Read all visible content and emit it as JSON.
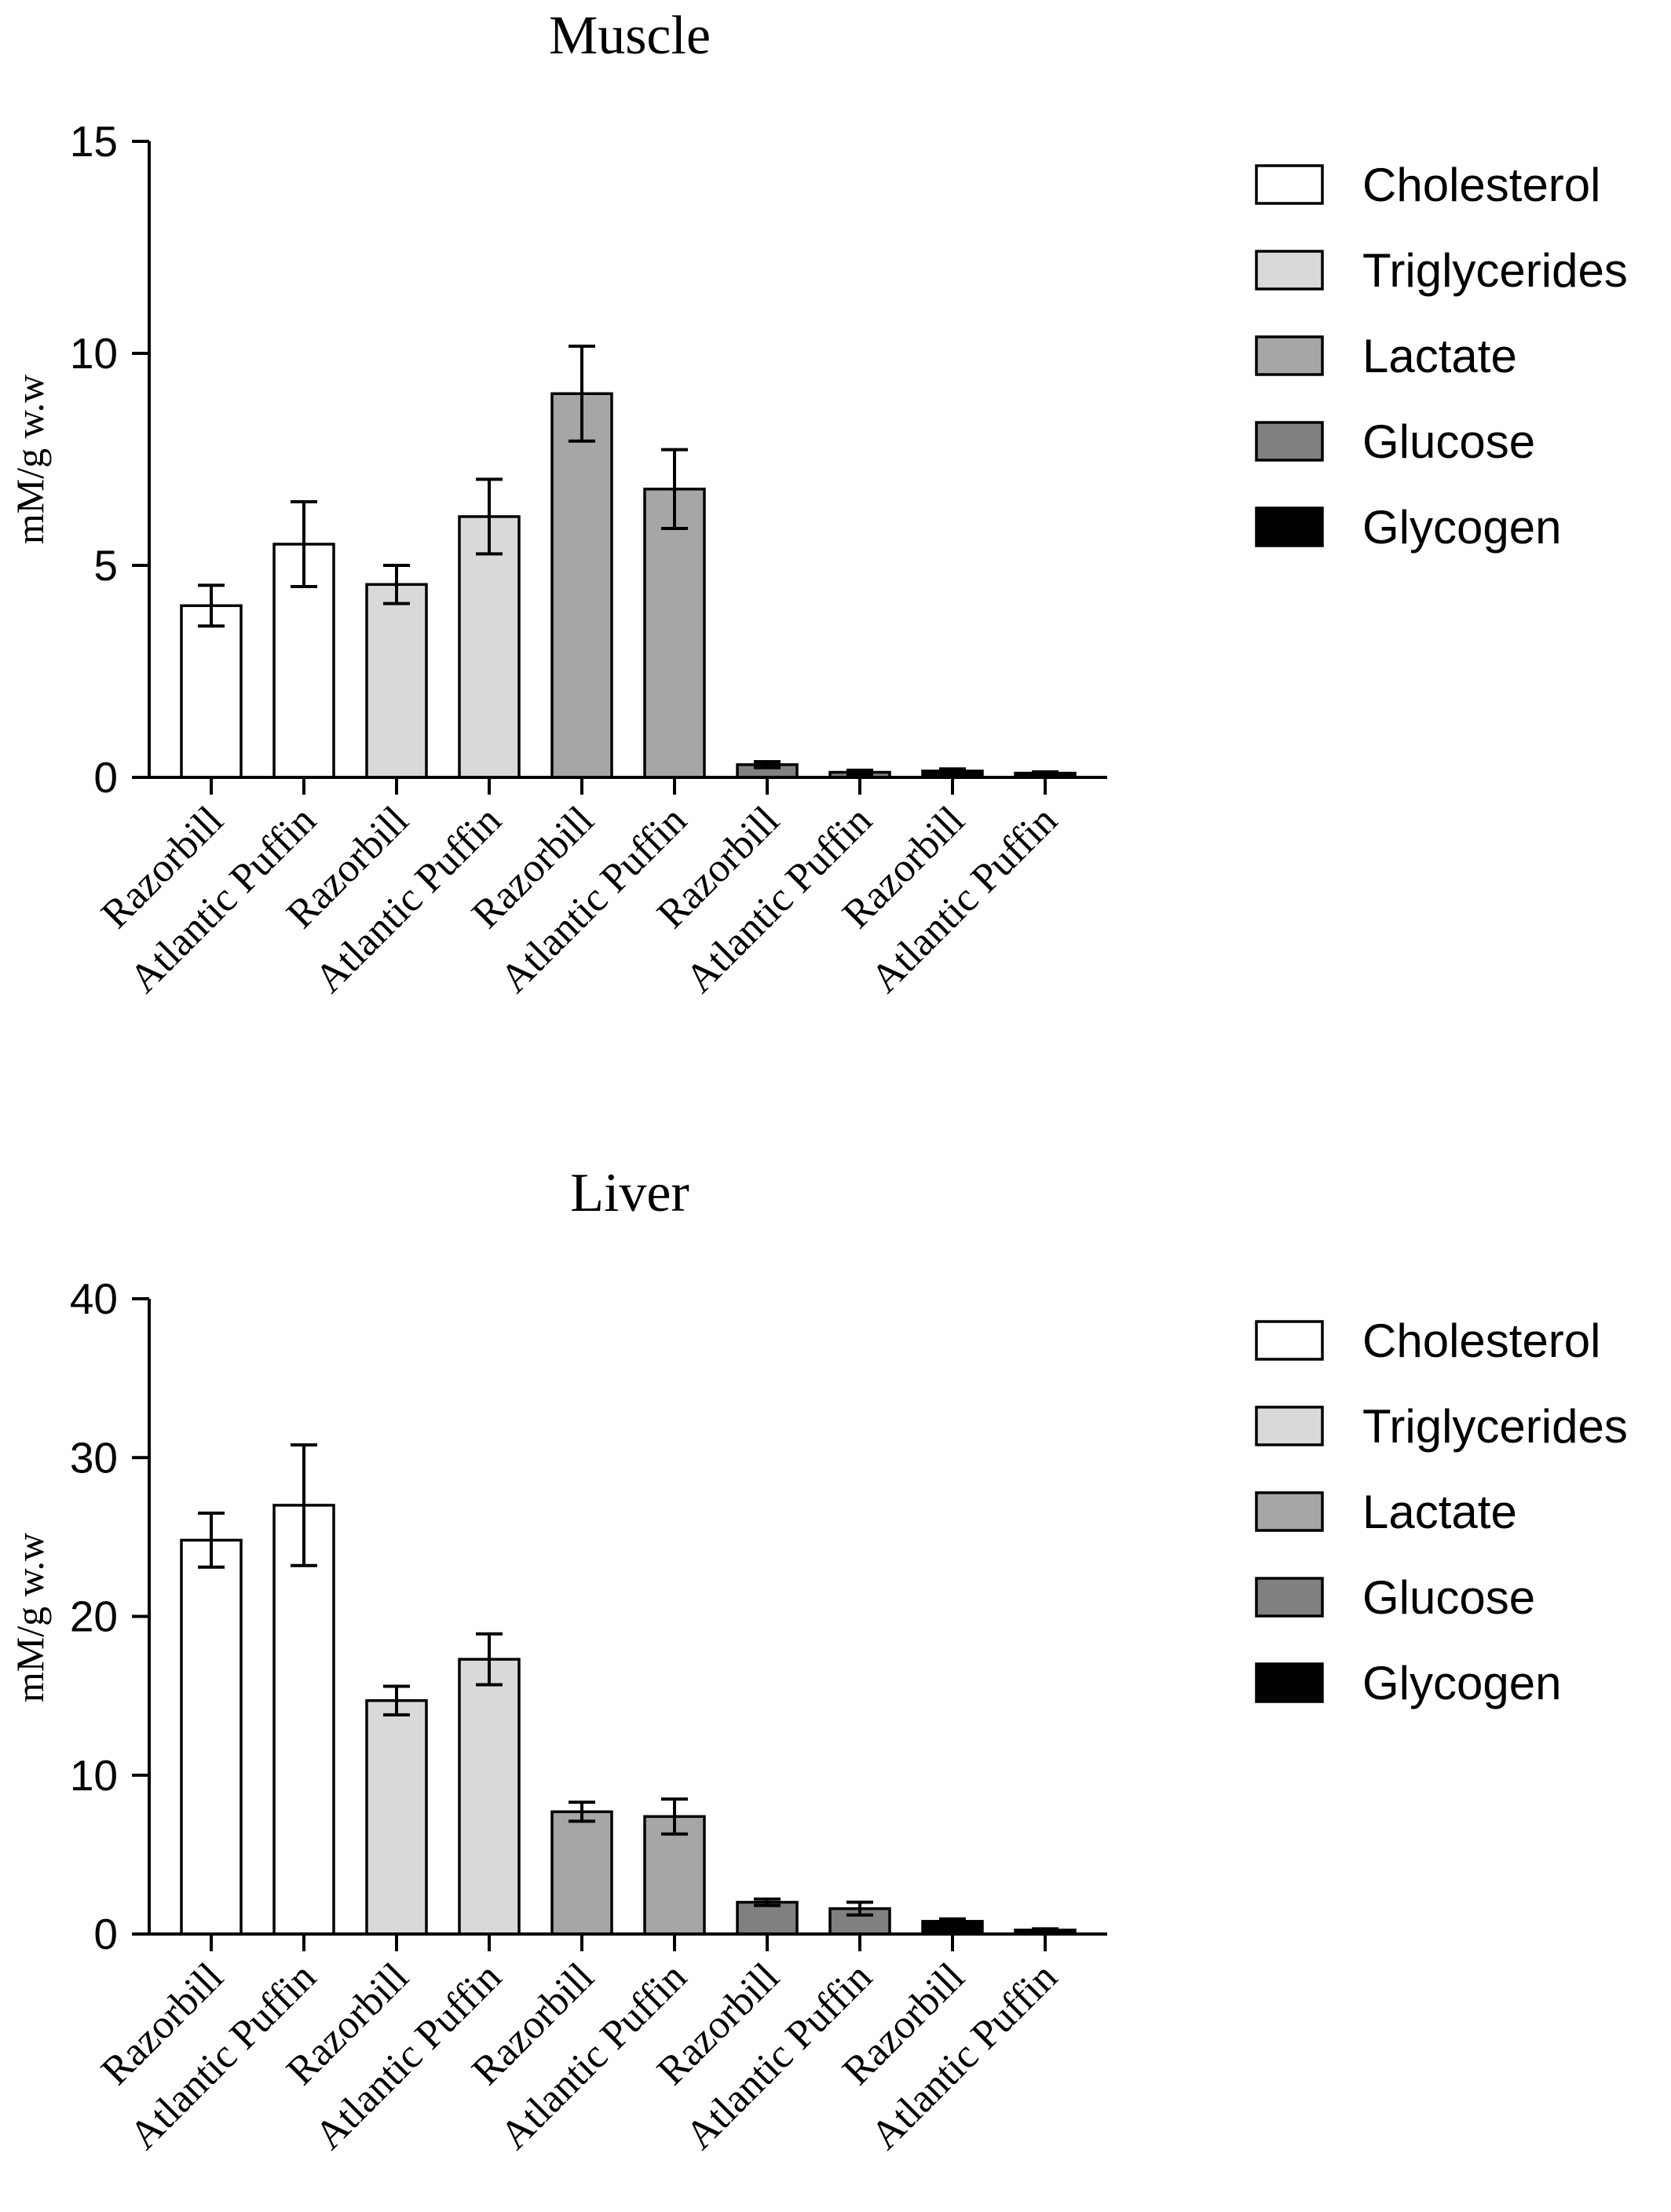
{
  "chart_data": [
    {
      "type": "bar",
      "title": "Muscle",
      "ylabel": "mM/g w.w",
      "ylim": [
        0,
        15
      ],
      "yticks": [
        0,
        5,
        10,
        15
      ],
      "categories": [
        "Razorbill",
        "Atlantic Puffin",
        "Razorbill",
        "Atlantic Puffin",
        "Razorbill",
        "Atlantic Puffin",
        "Razorbill",
        "Atlantic Puffin",
        "Razorbill",
        "Atlantic Puffin"
      ],
      "values": [
        4.05,
        5.5,
        4.55,
        6.15,
        9.05,
        6.8,
        0.3,
        0.12,
        0.15,
        0.1
      ],
      "errors": [
        0.48,
        1.0,
        0.45,
        0.88,
        1.12,
        0.93,
        0.07,
        0.05,
        0.05,
        0.03
      ],
      "bar_series": [
        "Cholesterol",
        "Cholesterol",
        "Triglycerides",
        "Triglycerides",
        "Lactate",
        "Lactate",
        "Glucose",
        "Glucose",
        "Glycogen",
        "Glycogen"
      ],
      "legend_position": "right",
      "grid": false
    },
    {
      "type": "bar",
      "title": "Liver",
      "ylabel": "mM/g w.w",
      "ylim": [
        0,
        40
      ],
      "yticks": [
        0,
        10,
        20,
        30,
        40
      ],
      "categories": [
        "Razorbill",
        "Atlantic Puffin",
        "Razorbill",
        "Atlantic Puffin",
        "Razorbill",
        "Atlantic Puffin",
        "Razorbill",
        "Atlantic Puffin",
        "Razorbill",
        "Atlantic Puffin"
      ],
      "values": [
        24.8,
        27.0,
        14.7,
        17.3,
        7.7,
        7.4,
        2.0,
        1.6,
        0.8,
        0.25
      ],
      "errors": [
        1.7,
        3.8,
        0.9,
        1.6,
        0.6,
        1.1,
        0.2,
        0.4,
        0.15,
        0.08
      ],
      "bar_series": [
        "Cholesterol",
        "Cholesterol",
        "Triglycerides",
        "Triglycerides",
        "Lactate",
        "Lactate",
        "Glucose",
        "Glucose",
        "Glycogen",
        "Glycogen"
      ],
      "legend_position": "right",
      "grid": false
    }
  ],
  "legend": [
    {
      "name": "Cholesterol",
      "color": "#ffffff"
    },
    {
      "name": "Triglycerides",
      "color": "#d9d9d9"
    },
    {
      "name": "Lactate",
      "color": "#a6a6a6"
    },
    {
      "name": "Glucose",
      "color": "#808080"
    },
    {
      "name": "Glycogen",
      "color": "#000000"
    }
  ]
}
